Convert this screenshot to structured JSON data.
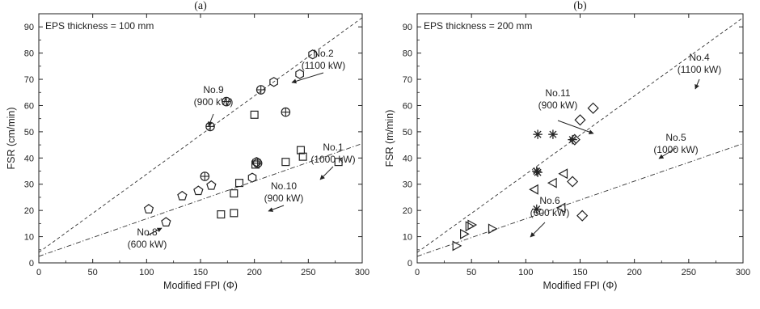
{
  "chart_data": [
    {
      "panel": "(a)",
      "type": "scatter",
      "box_label": "EPS thickness = 100 mm",
      "xlabel": "Modified FPI (Φ)",
      "ylabel": "FSR (cm/min)",
      "xlim": [
        0,
        300
      ],
      "ylim": [
        0,
        95
      ],
      "xticks": [
        0,
        50,
        100,
        150,
        200,
        250,
        300
      ],
      "yticks": [
        0,
        10,
        20,
        30,
        40,
        50,
        60,
        70,
        80,
        90
      ],
      "series": [
        {
          "marker": "hexagon",
          "points": [
            [
              218,
              69
            ],
            [
              254,
              79.5
            ],
            [
              242,
              72
            ],
            [
              202,
              38.5
            ],
            [
              198,
              32.5
            ]
          ]
        },
        {
          "marker": "circle-plus",
          "points": [
            [
              174,
              61.5
            ],
            [
              159,
              52
            ],
            [
              206,
              66
            ],
            [
              229,
              57.5
            ],
            [
              154,
              33
            ],
            [
              203,
              38
            ]
          ]
        },
        {
          "marker": "square",
          "points": [
            [
              200,
              56.5
            ],
            [
              169,
              18.5
            ],
            [
              181,
              19
            ],
            [
              181,
              26.5
            ],
            [
              186,
              30.5
            ],
            [
              201,
              37.5
            ],
            [
              229,
              38.5
            ],
            [
              243,
              43
            ],
            [
              245,
              40.5
            ],
            [
              278,
              38.5
            ]
          ]
        },
        {
          "marker": "pentagon",
          "points": [
            [
              102,
              20.5
            ],
            [
              118,
              15.5
            ],
            [
              133,
              25.5
            ],
            [
              148,
              27.5
            ],
            [
              160,
              29.5
            ]
          ]
        }
      ],
      "lines": [
        {
          "style": "dashed",
          "from": [
            0,
            4
          ],
          "to": [
            300,
            93.5
          ]
        },
        {
          "style": "dash-dot",
          "from": [
            0,
            2.5
          ],
          "to": [
            300,
            45.5
          ]
        }
      ],
      "annotations": [
        {
          "lines": [
            "No.2",
            "(1100 kW)"
          ]
        },
        {
          "lines": [
            "No.9",
            "(900 kW)"
          ]
        },
        {
          "lines": [
            "No.1",
            "(1000 kW)"
          ]
        },
        {
          "lines": [
            "No.10",
            "(900 kW)"
          ]
        },
        {
          "lines": [
            "No.8",
            "(600 kW)"
          ]
        }
      ]
    },
    {
      "panel": "(b)",
      "type": "scatter",
      "box_label": "EPS thickness = 200 mm",
      "xlabel": "Modified FPI (Φ)",
      "ylabel": "FSR (m/min)",
      "xlim": [
        0,
        300
      ],
      "ylim": [
        0,
        95
      ],
      "xticks": [
        0,
        50,
        100,
        150,
        200,
        250,
        300
      ],
      "yticks": [
        0,
        10,
        20,
        30,
        40,
        50,
        60,
        70,
        80,
        90
      ],
      "series": [
        {
          "marker": "diamond",
          "points": [
            [
              162,
              59
            ],
            [
              150,
              54.5
            ],
            [
              145,
              47
            ],
            [
              143,
              31
            ],
            [
              152,
              18
            ]
          ]
        },
        {
          "marker": "asterisk",
          "points": [
            [
              111,
              49
            ],
            [
              125,
              49
            ],
            [
              143,
              47
            ],
            [
              110,
              35
            ],
            [
              111,
              34.5
            ],
            [
              110,
              20.5
            ]
          ]
        },
        {
          "marker": "triangle-left",
          "points": [
            [
              108,
              28
            ],
            [
              135,
              34
            ],
            [
              133,
              21
            ],
            [
              125,
              30.5
            ]
          ]
        },
        {
          "marker": "triangle-right",
          "points": [
            [
              48,
              14
            ],
            [
              50,
              14.5
            ],
            [
              43,
              11
            ],
            [
              36,
              6.5
            ],
            [
              69,
              13
            ]
          ]
        }
      ],
      "lines": [
        {
          "style": "dashed",
          "from": [
            0,
            4
          ],
          "to": [
            300,
            93.5
          ]
        },
        {
          "style": "dash-dot",
          "from": [
            0,
            2.5
          ],
          "to": [
            300,
            45.5
          ]
        }
      ],
      "annotations": [
        {
          "lines": [
            "No.4",
            "(1100 kW)"
          ]
        },
        {
          "lines": [
            "No.11",
            "(900 kW)"
          ]
        },
        {
          "lines": [
            "No.5",
            "(1000 kW)"
          ]
        },
        {
          "lines": [
            "No.6",
            "(600 kW)"
          ]
        }
      ]
    }
  ]
}
